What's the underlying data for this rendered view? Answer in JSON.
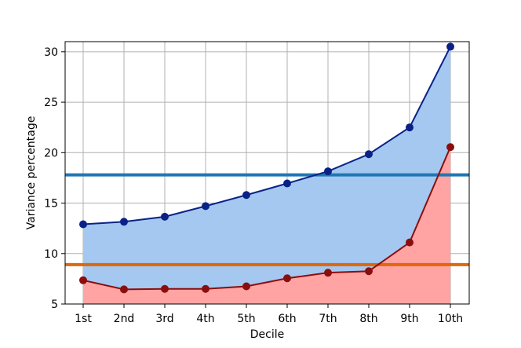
{
  "chart_data": {
    "type": "line",
    "title": "",
    "xlabel": "Decile",
    "ylabel": "Variance percentage",
    "categories": [
      "1st",
      "2nd",
      "3rd",
      "4th",
      "5th",
      "6th",
      "7th",
      "8th",
      "9th",
      "10th"
    ],
    "ylim": [
      5,
      31
    ],
    "yticks": [
      5,
      10,
      15,
      20,
      25,
      30
    ],
    "grid": true,
    "legend": "none",
    "series": [
      {
        "values": [
          12.9,
          13.15,
          13.65,
          14.7,
          15.8,
          16.95,
          18.15,
          19.85,
          22.5,
          30.5
        ],
        "color": "#0a2288",
        "fill": "#a4c8f0"
      },
      {
        "values": [
          7.35,
          6.45,
          6.5,
          6.5,
          6.75,
          7.55,
          8.1,
          8.25,
          11.1,
          20.55
        ],
        "color": "#8b0e0e",
        "fill": "#ffa3a3"
      }
    ],
    "hlines": [
      {
        "value": 17.8,
        "color": "#1f77b4"
      },
      {
        "value": 8.9,
        "color": "#e0660a"
      }
    ]
  }
}
